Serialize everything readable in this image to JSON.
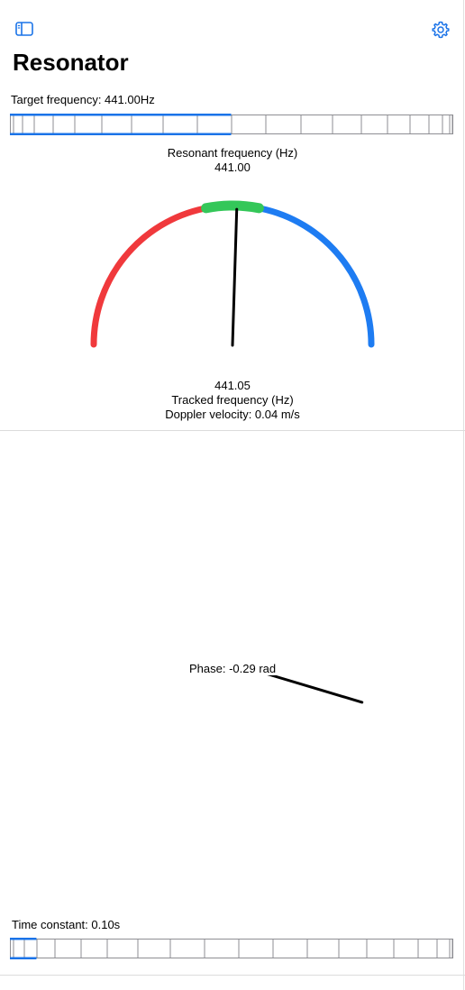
{
  "app": {
    "title": "Resonator"
  },
  "icons": {
    "sidebar": "sidebar-icon",
    "settings": "gear-icon"
  },
  "target": {
    "label": "Target frequency: 441.00Hz",
    "position": 0.5
  },
  "resonant": {
    "label": "Resonant frequency (Hz)",
    "value": "441.00"
  },
  "gauge": {
    "colors": {
      "flat": "#f0393c",
      "in_tune": "#34c759",
      "sharp": "#1e7cf2"
    },
    "needle_offset": 0.02
  },
  "tracked": {
    "value": "441.05",
    "label": "Tracked frequency (Hz)",
    "doppler": "Doppler velocity: 0.04 m/s"
  },
  "phase": {
    "label": "Phase: -0.29 rad",
    "angle_rad": -0.29
  },
  "time_constant": {
    "label": "Time constant: 0.10s",
    "position": 0.06
  },
  "accent": "#1a73e8"
}
